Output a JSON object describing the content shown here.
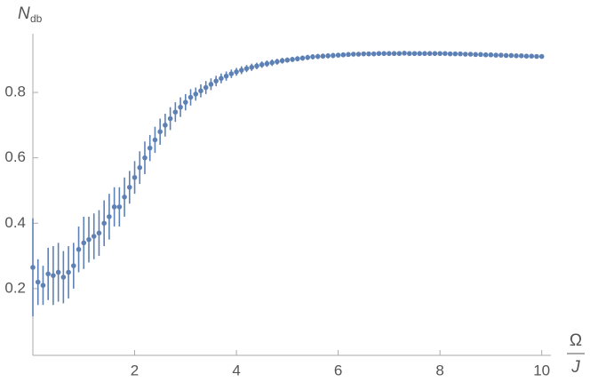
{
  "chart_data": {
    "type": "errorbar-scatter",
    "ylabel": "N",
    "ylabel_subscript": "db",
    "xlabel_numerator": "Ω",
    "xlabel_denominator": "J",
    "xlim": [
      0,
      10.18
    ],
    "ylim": [
      0,
      0.98
    ],
    "xticks": [
      2,
      4,
      6,
      8,
      10
    ],
    "yticks": [
      0.2,
      0.4,
      0.6,
      0.8
    ],
    "x": [
      0,
      0.1,
      0.2,
      0.3,
      0.4,
      0.5,
      0.6,
      0.7,
      0.8,
      0.9,
      1,
      1.1,
      1.2,
      1.3,
      1.4,
      1.5,
      1.6,
      1.7,
      1.8,
      1.9,
      2,
      2.1,
      2.2,
      2.3,
      2.4,
      2.5,
      2.6,
      2.7,
      2.8,
      2.9,
      3,
      3.1,
      3.2,
      3.3,
      3.4,
      3.5,
      3.6,
      3.7,
      3.8,
      3.9,
      4,
      4.1,
      4.2,
      4.3,
      4.4,
      4.5,
      4.6,
      4.7,
      4.8,
      4.9,
      5,
      5.1,
      5.2,
      5.3,
      5.4,
      5.5,
      5.6,
      5.7,
      5.8,
      5.9,
      6,
      6.1,
      6.2,
      6.3,
      6.4,
      6.5,
      6.6,
      6.7,
      6.8,
      6.9,
      7,
      7.1,
      7.2,
      7.3,
      7.4,
      7.5,
      7.6,
      7.7,
      7.8,
      7.9,
      8,
      8.1,
      8.2,
      8.3,
      8.4,
      8.5,
      8.6,
      8.7,
      8.8,
      8.9,
      9,
      9.1,
      9.2,
      9.3,
      9.4,
      9.5,
      9.6,
      9.7,
      9.8,
      9.9,
      10
    ],
    "series": [
      {
        "color": "#5e81b5",
        "values": [
          0.265,
          0.22,
          0.21,
          0.245,
          0.24,
          0.25,
          0.235,
          0.25,
          0.27,
          0.32,
          0.34,
          0.35,
          0.36,
          0.37,
          0.4,
          0.42,
          0.45,
          0.45,
          0.48,
          0.51,
          0.54,
          0.57,
          0.6,
          0.63,
          0.655,
          0.68,
          0.7,
          0.72,
          0.74,
          0.755,
          0.77,
          0.785,
          0.795,
          0.805,
          0.815,
          0.825,
          0.835,
          0.843,
          0.85,
          0.857,
          0.863,
          0.868,
          0.873,
          0.877,
          0.881,
          0.885,
          0.888,
          0.891,
          0.894,
          0.897,
          0.899,
          0.901,
          0.903,
          0.905,
          0.907,
          0.909,
          0.91,
          0.911,
          0.912,
          0.913,
          0.914,
          0.915,
          0.916,
          0.917,
          0.917,
          0.918,
          0.918,
          0.918,
          0.919,
          0.919,
          0.919,
          0.919,
          0.919,
          0.92,
          0.919,
          0.919,
          0.919,
          0.919,
          0.919,
          0.919,
          0.919,
          0.919,
          0.918,
          0.918,
          0.918,
          0.917,
          0.917,
          0.916,
          0.916,
          0.915,
          0.915,
          0.914,
          0.914,
          0.913,
          0.913,
          0.912,
          0.912,
          0.911,
          0.911,
          0.91,
          0.91
        ],
        "errors": [
          0.15,
          0.07,
          0.06,
          0.08,
          0.09,
          0.09,
          0.08,
          0.08,
          0.07,
          0.07,
          0.08,
          0.07,
          0.07,
          0.07,
          0.07,
          0.07,
          0.06,
          0.06,
          0.06,
          0.05,
          0.05,
          0.05,
          0.05,
          0.04,
          0.04,
          0.04,
          0.035,
          0.035,
          0.03,
          0.03,
          0.025,
          0.025,
          0.02,
          0.02,
          0.02,
          0.018,
          0.016,
          0.015,
          0.014,
          0.013,
          0.012,
          0.012,
          0.011,
          0.011,
          0.01,
          0.01,
          0.01,
          0.01,
          0.009,
          0.009,
          0.008,
          0.008,
          0.008,
          0.008,
          0.008,
          0.008,
          0.008,
          0.008,
          0.008,
          0.008,
          0.007,
          0.007,
          0.007,
          0.007,
          0.007,
          0.007,
          0.007,
          0.007,
          0.007,
          0.007,
          0.007,
          0.007,
          0.007,
          0.007,
          0.007,
          0.007,
          0.007,
          0.007,
          0.007,
          0.007,
          0.006,
          0.006,
          0.006,
          0.006,
          0.006,
          0.006,
          0.006,
          0.006,
          0.006,
          0.006,
          0.006,
          0.006,
          0.006,
          0.006,
          0.006,
          0.006,
          0.006,
          0.006,
          0.006,
          0.006,
          0.006
        ]
      }
    ]
  }
}
